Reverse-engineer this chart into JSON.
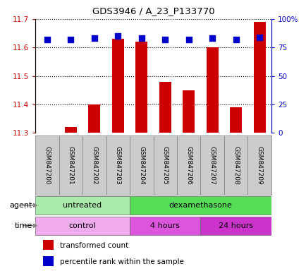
{
  "title": "GDS3946 / A_23_P133770",
  "samples": [
    "GSM847200",
    "GSM847201",
    "GSM847202",
    "GSM847203",
    "GSM847204",
    "GSM847205",
    "GSM847206",
    "GSM847207",
    "GSM847208",
    "GSM847209"
  ],
  "transformed_counts": [
    11.3,
    11.32,
    11.4,
    11.63,
    11.62,
    11.48,
    11.45,
    11.6,
    11.39,
    11.69
  ],
  "percentile_ranks": [
    82,
    82,
    83,
    85,
    83,
    82,
    82,
    83,
    82,
    84
  ],
  "ylim_left": [
    11.3,
    11.7
  ],
  "ylim_right": [
    0,
    100
  ],
  "yticks_left": [
    11.3,
    11.4,
    11.5,
    11.6,
    11.7
  ],
  "yticks_right": [
    0,
    25,
    50,
    75,
    100
  ],
  "ytick_labels_right": [
    "0",
    "25",
    "50",
    "75",
    "100%"
  ],
  "bar_color": "#cc0000",
  "dot_color": "#0000cc",
  "bar_bottom": 11.3,
  "agent_groups": [
    {
      "label": "untreated",
      "start": 0,
      "end": 4,
      "color": "#aaeaaa"
    },
    {
      "label": "dexamethasone",
      "start": 4,
      "end": 10,
      "color": "#55dd55"
    }
  ],
  "time_groups": [
    {
      "label": "control",
      "start": 0,
      "end": 4,
      "color": "#f0aaee"
    },
    {
      "label": "4 hours",
      "start": 4,
      "end": 7,
      "color": "#dd55dd"
    },
    {
      "label": "24 hours",
      "start": 7,
      "end": 10,
      "color": "#cc33cc"
    }
  ],
  "legend_items": [
    {
      "color": "#cc0000",
      "label": "transformed count"
    },
    {
      "color": "#0000cc",
      "label": "percentile rank within the sample"
    }
  ],
  "grid_color": "#000000",
  "bar_width": 0.5,
  "dot_size": 40,
  "sample_box_color": "#cccccc",
  "chart_bg": "#ffffff"
}
